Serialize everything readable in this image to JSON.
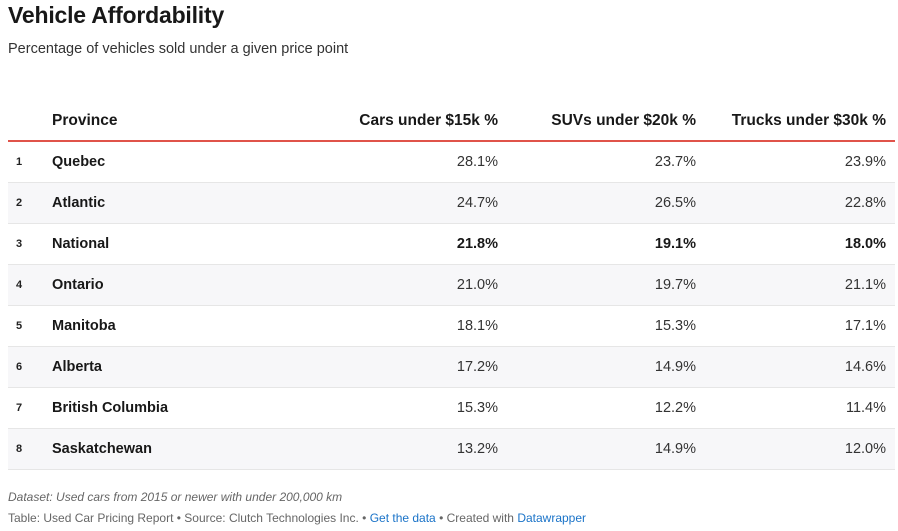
{
  "header": {
    "title": "Vehicle Affordability",
    "subtitle": "Percentage of vehicles sold under a given price point"
  },
  "table": {
    "columns": [
      "",
      "Province",
      "Cars under $15k %",
      "SUVs under $20k %",
      "Trucks under $30k %"
    ],
    "rows": [
      {
        "rank": "1",
        "province": "Quebec",
        "cars": "28.1%",
        "suvs": "23.7%",
        "trucks": "23.9%"
      },
      {
        "rank": "2",
        "province": "Atlantic",
        "cars": "24.7%",
        "suvs": "26.5%",
        "trucks": "22.8%"
      },
      {
        "rank": "3",
        "province": "National",
        "cars": "21.8%",
        "suvs": "19.1%",
        "trucks": "18.0%"
      },
      {
        "rank": "4",
        "province": "Ontario",
        "cars": "21.0%",
        "suvs": "19.7%",
        "trucks": "21.1%"
      },
      {
        "rank": "5",
        "province": "Manitoba",
        "cars": "18.1%",
        "suvs": "15.3%",
        "trucks": "17.1%"
      },
      {
        "rank": "6",
        "province": "Alberta",
        "cars": "17.2%",
        "suvs": "14.9%",
        "trucks": "14.6%"
      },
      {
        "rank": "7",
        "province": "British Columbia",
        "cars": "15.3%",
        "suvs": "12.2%",
        "trucks": "11.4%"
      },
      {
        "rank": "8",
        "province": "Saskatchewan",
        "cars": "13.2%",
        "suvs": "14.9%",
        "trucks": "12.0%"
      }
    ]
  },
  "footer": {
    "note": "Dataset: Used cars from 2015 or newer with under 200,000 km",
    "source_text": "Table: Used Car Pricing Report • Source: Clutch Technologies Inc. • ",
    "get_data_label": "Get the data",
    "created_with": " • Created with ",
    "datawrapper_label": "Datawrapper"
  },
  "colors": {
    "header_rule": "#e0534a",
    "link": "#1a73c8"
  },
  "chart_data": {
    "type": "table",
    "title": "Vehicle Affordability",
    "subtitle": "Percentage of vehicles sold under a given price point",
    "columns": [
      "Province",
      "Cars under $15k %",
      "SUVs under $20k %",
      "Trucks under $30k %"
    ],
    "categories": [
      "Quebec",
      "Atlantic",
      "National",
      "Ontario",
      "Manitoba",
      "Alberta",
      "British Columbia",
      "Saskatchewan"
    ],
    "series": [
      {
        "name": "Cars under $15k %",
        "values": [
          28.1,
          24.7,
          21.8,
          21.0,
          18.1,
          17.2,
          15.3,
          13.2
        ]
      },
      {
        "name": "SUVs under $20k %",
        "values": [
          23.7,
          26.5,
          19.1,
          19.7,
          15.3,
          14.9,
          12.2,
          14.9
        ]
      },
      {
        "name": "Trucks under $30k %",
        "values": [
          23.9,
          22.8,
          18.0,
          21.1,
          17.1,
          14.6,
          11.4,
          12.0
        ]
      }
    ]
  }
}
